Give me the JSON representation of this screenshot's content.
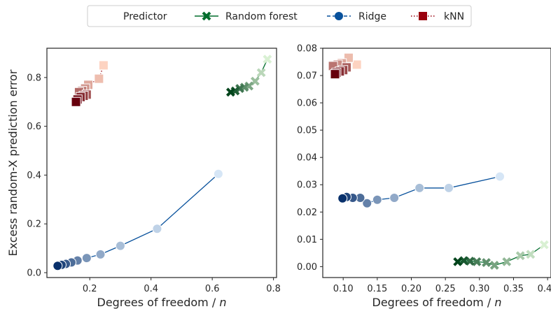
{
  "legend": {
    "title": "Predictor",
    "placement": "top-center",
    "entries": [
      {
        "name": "Random forest",
        "color": "#006d2c",
        "marker": "x-marker",
        "line": "solid"
      },
      {
        "name": "Ridge",
        "color": "#08519c",
        "marker": "circle-marker",
        "line": "dashed"
      },
      {
        "name": "kNN",
        "color": "#99000d",
        "marker": "square-marker",
        "line": "dotted"
      }
    ]
  },
  "chart_data": [
    {
      "type": "scatter",
      "panel": "left",
      "title": "",
      "xlabel": "Degrees of freedom / n",
      "ylabel": "Excess random-X prediction error",
      "xlim": [
        0.06,
        0.81
      ],
      "ylim": [
        -0.02,
        0.92
      ],
      "xticks": [
        0.2,
        0.4,
        0.6,
        0.8
      ],
      "yticks": [
        0.0,
        0.2,
        0.4,
        0.6,
        0.8
      ],
      "xtick_labels": [
        "0.2",
        "0.4",
        "0.6",
        "0.8"
      ],
      "ytick_labels": [
        "0.0",
        "0.2",
        "0.4",
        "0.6",
        "0.8"
      ],
      "grid": false,
      "series": [
        {
          "name": "Random forest",
          "x": [
            0.66,
            0.675,
            0.69,
            0.705,
            0.72,
            0.74,
            0.76,
            0.78
          ],
          "y": [
            0.74,
            0.745,
            0.755,
            0.76,
            0.765,
            0.785,
            0.82,
            0.875
          ]
        },
        {
          "name": "Ridge",
          "x": [
            0.095,
            0.108,
            0.122,
            0.14,
            0.16,
            0.19,
            0.235,
            0.3,
            0.42,
            0.62
          ],
          "y": [
            0.028,
            0.032,
            0.036,
            0.042,
            0.05,
            0.06,
            0.075,
            0.11,
            0.18,
            0.405
          ]
        },
        {
          "name": "kNN",
          "x": [
            0.155,
            0.16,
            0.17,
            0.18,
            0.19,
            0.165,
            0.175,
            0.185,
            0.195,
            0.23,
            0.245
          ],
          "y": [
            0.7,
            0.71,
            0.72,
            0.725,
            0.73,
            0.74,
            0.745,
            0.755,
            0.77,
            0.795,
            0.85
          ]
        }
      ]
    },
    {
      "type": "scatter",
      "panel": "right",
      "title": "",
      "xlabel": "Degrees of freedom / n",
      "ylabel": "",
      "xlim": [
        0.07,
        0.405
      ],
      "ylim": [
        -0.004,
        0.08
      ],
      "xticks": [
        0.1,
        0.15,
        0.2,
        0.25,
        0.3,
        0.35,
        0.4
      ],
      "yticks": [
        0.0,
        0.01,
        0.02,
        0.03,
        0.04,
        0.05,
        0.06,
        0.07,
        0.08
      ],
      "xtick_labels": [
        "0.10",
        "0.15",
        "0.20",
        "0.25",
        "0.30",
        "0.35",
        "0.40"
      ],
      "ytick_labels": [
        "0.00",
        "0.01",
        "0.02",
        "0.03",
        "0.04",
        "0.05",
        "0.06",
        "0.07",
        "0.08"
      ],
      "grid": false,
      "series": [
        {
          "name": "Random forest",
          "x": [
            0.268,
            0.277,
            0.286,
            0.296,
            0.31,
            0.322,
            0.34,
            0.36,
            0.375,
            0.395
          ],
          "y": [
            0.0018,
            0.0022,
            0.002,
            0.0018,
            0.0015,
            0.0005,
            0.0018,
            0.004,
            0.0045,
            0.008
          ]
        },
        {
          "name": "Ridge",
          "x": [
            0.099,
            0.105,
            0.114,
            0.125,
            0.135,
            0.15,
            0.175,
            0.212,
            0.255,
            0.33
          ],
          "y": [
            0.025,
            0.0255,
            0.0252,
            0.0252,
            0.0232,
            0.0245,
            0.0252,
            0.0288,
            0.0288,
            0.033
          ]
        },
        {
          "name": "kNN",
          "x": [
            0.088,
            0.09,
            0.095,
            0.1,
            0.105,
            0.085,
            0.092,
            0.098,
            0.108,
            0.12
          ],
          "y": [
            0.0705,
            0.071,
            0.0715,
            0.072,
            0.073,
            0.0735,
            0.074,
            0.0745,
            0.0765,
            0.074
          ]
        }
      ]
    }
  ]
}
